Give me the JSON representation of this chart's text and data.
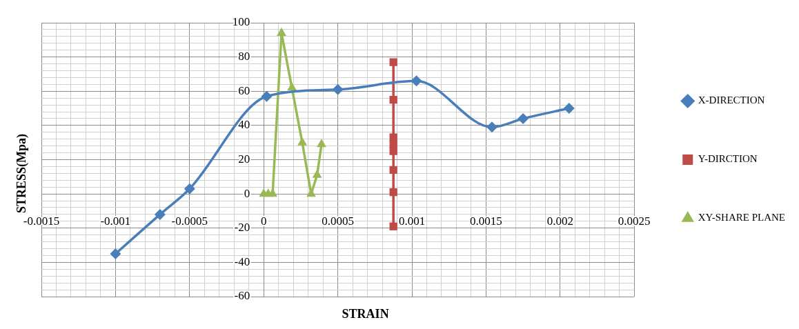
{
  "chart_data": {
    "type": "line",
    "xlabel": "STRAIN",
    "ylabel": "STRESS(Mpa)",
    "xlim": [
      -0.0015,
      0.0025
    ],
    "ylim": [
      -60,
      100
    ],
    "xticks": [
      -0.0015,
      {
        "value": -0.0014,
        "label": null
      },
      {
        "value": -0.0013,
        "label": null
      },
      {
        "value": -0.0012,
        "label": null
      },
      {
        "value": -0.0011,
        "label": null
      },
      -0.001,
      {
        "value": -0.0009,
        "label": null
      },
      {
        "value": -0.0008,
        "label": null
      },
      {
        "value": -0.0007,
        "label": null
      },
      {
        "value": -0.0006,
        "label": null
      },
      -0.0005,
      {
        "value": -0.0004,
        "label": null
      },
      {
        "value": -0.0003,
        "label": null
      },
      {
        "value": -0.0002,
        "label": null
      },
      {
        "value": -0.0001,
        "label": null
      },
      0,
      {
        "value": 0.0001,
        "label": null
      },
      {
        "value": 0.0002,
        "label": null
      },
      {
        "value": 0.0003,
        "label": null
      },
      {
        "value": 0.0004,
        "label": null
      },
      0.0005,
      {
        "value": 0.0006,
        "label": null
      },
      {
        "value": 0.0007,
        "label": null
      },
      {
        "value": 0.0008,
        "label": null
      },
      {
        "value": 0.0009,
        "label": null
      },
      0.001,
      {
        "value": 0.0011,
        "label": null
      },
      {
        "value": 0.0012,
        "label": null
      },
      {
        "value": 0.0013,
        "label": null
      },
      {
        "value": 0.0014,
        "label": null
      },
      0.0015,
      {
        "value": 0.0016,
        "label": null
      },
      {
        "value": 0.0017,
        "label": null
      },
      {
        "value": 0.0018,
        "label": null
      },
      {
        "value": 0.0019,
        "label": null
      },
      0.002,
      {
        "value": 0.0021,
        "label": null
      },
      {
        "value": 0.0022,
        "label": null
      },
      {
        "value": 0.0023,
        "label": null
      },
      {
        "value": 0.0024,
        "label": null
      },
      0.0025
    ],
    "yticks": [
      -60,
      {
        "value": -56,
        "label": null
      },
      {
        "value": -52,
        "label": null
      },
      {
        "value": -48,
        "label": null
      },
      {
        "value": -44,
        "label": null
      },
      -40,
      {
        "value": -36,
        "label": null
      },
      {
        "value": -32,
        "label": null
      },
      {
        "value": -28,
        "label": null
      },
      {
        "value": -24,
        "label": null
      },
      -20,
      {
        "value": -16,
        "label": null
      },
      {
        "value": -12,
        "label": null
      },
      {
        "value": -8,
        "label": null
      },
      {
        "value": -4,
        "label": null
      },
      0,
      {
        "value": 4,
        "label": null
      },
      {
        "value": 8,
        "label": null
      },
      {
        "value": 12,
        "label": null
      },
      {
        "value": 16,
        "label": null
      },
      20,
      {
        "value": 24,
        "label": null
      },
      {
        "value": 28,
        "label": null
      },
      {
        "value": 32,
        "label": null
      },
      {
        "value": 36,
        "label": null
      },
      40,
      {
        "value": 44,
        "label": null
      },
      {
        "value": 48,
        "label": null
      },
      {
        "value": 52,
        "label": null
      },
      {
        "value": 56,
        "label": null
      },
      60,
      {
        "value": 64,
        "label": null
      },
      {
        "value": 68,
        "label": null
      },
      {
        "value": 72,
        "label": null
      },
      {
        "value": 76,
        "label": null
      },
      80,
      {
        "value": 84,
        "label": null
      },
      {
        "value": 88,
        "label": null
      },
      {
        "value": 92,
        "label": null
      },
      {
        "value": 96,
        "label": null
      },
      100
    ],
    "grid": true,
    "legend": "right",
    "line_style": "solid",
    "series": [
      {
        "name": "X-DIRECTION",
        "color": "#4a7ebb",
        "marker": "diamond",
        "x": [
          -0.001,
          -0.0007,
          -0.0005,
          2e-05,
          0.0005,
          0.00103,
          0.00154,
          0.00175,
          0.00206
        ],
        "values": [
          -35,
          -12,
          3,
          57,
          61,
          66,
          39,
          44,
          50
        ]
      },
      {
        "name": "Y-DIRCTION",
        "color": "#be4b48",
        "marker": "square",
        "x": [
          0.000875,
          0.000875,
          0.000875,
          0.000875,
          0.000875,
          0.000875,
          0.000875,
          0.000875
        ],
        "values": [
          77,
          55,
          33,
          29,
          25,
          14,
          1,
          -19
        ]
      },
      {
        "name": "XY-SHARE PLANE",
        "color": "#98b954",
        "marker": "triangle",
        "x": [
          0,
          3e-05,
          6e-05,
          0.00012,
          0.00019,
          0.00026,
          0.00032,
          0.00036,
          0.00039
        ],
        "values": [
          0,
          0,
          0,
          94,
          62,
          30,
          0,
          11,
          29
        ]
      }
    ]
  }
}
